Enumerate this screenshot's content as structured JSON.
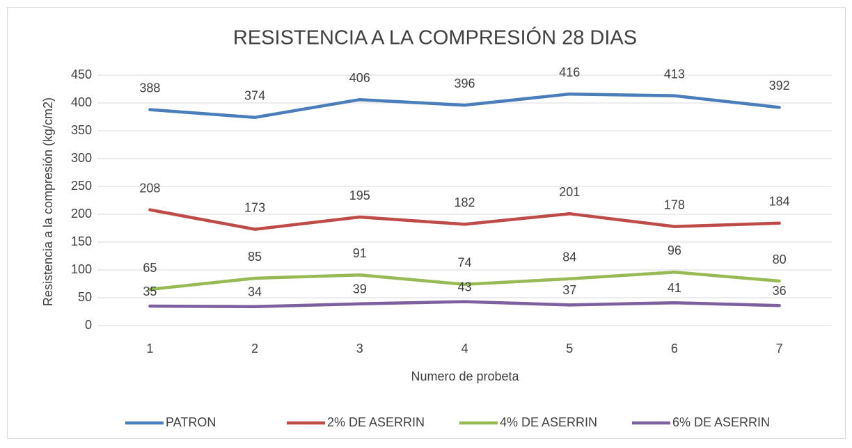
{
  "chart_data": {
    "type": "line",
    "title": "RESISTENCIA A LA  COMPRESIÓN 28 DIAS",
    "x_label": "Numero de probeta",
    "y_label": "Resistencia a la compresión (kg/cm2)",
    "categories": [
      "1",
      "2",
      "3",
      "4",
      "5",
      "6",
      "7"
    ],
    "series": [
      {
        "name": "PATRON",
        "color": "#4a7ebb",
        "values": [
          388,
          374,
          406,
          396,
          416,
          413,
          392
        ]
      },
      {
        "name": "2% DE ASERRIN",
        "color": "#be4b48",
        "values": [
          208,
          173,
          195,
          182,
          201,
          178,
          184
        ]
      },
      {
        "name": "4% DE ASERRIN",
        "color": "#98b954",
        "values": [
          65,
          85,
          91,
          74,
          84,
          96,
          80
        ]
      },
      {
        "name": "6% DE ASERRIN",
        "color": "#7d60a0",
        "values": [
          35,
          34,
          39,
          43,
          37,
          41,
          36
        ]
      }
    ],
    "ylim": [
      0,
      450
    ],
    "yticks": [
      0,
      50,
      100,
      150,
      200,
      250,
      300,
      350,
      400,
      450
    ],
    "grid": true,
    "legend": "bottom"
  }
}
